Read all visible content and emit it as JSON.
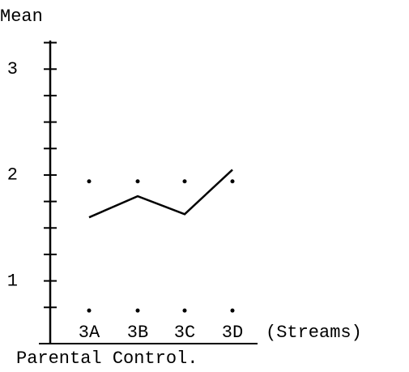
{
  "chart_data": {
    "type": "line",
    "title": "Parental Control.",
    "y_label": "Mean",
    "x_label": "(Streams)",
    "categories": [
      "3A",
      "3B",
      "3C",
      "3D"
    ],
    "series": [
      {
        "values": [
          1.6,
          1.8,
          1.63,
          2.05
        ],
        "color": "#000000",
        "style": "line"
      },
      {
        "values": [
          1.94,
          1.94,
          1.94,
          1.94
        ],
        "color": "#000000",
        "style": "dots"
      },
      {
        "values": [
          0.72,
          0.72,
          0.72,
          0.72
        ],
        "color": "#000000",
        "style": "dots"
      }
    ],
    "ylim": [
      0.53,
      3.27
    ],
    "yticks": [
      1,
      2,
      3
    ],
    "yminor_ticks": [
      0.75,
      1.25,
      1.5,
      1.75,
      2.25,
      2.5,
      2.75,
      3.25
    ]
  }
}
